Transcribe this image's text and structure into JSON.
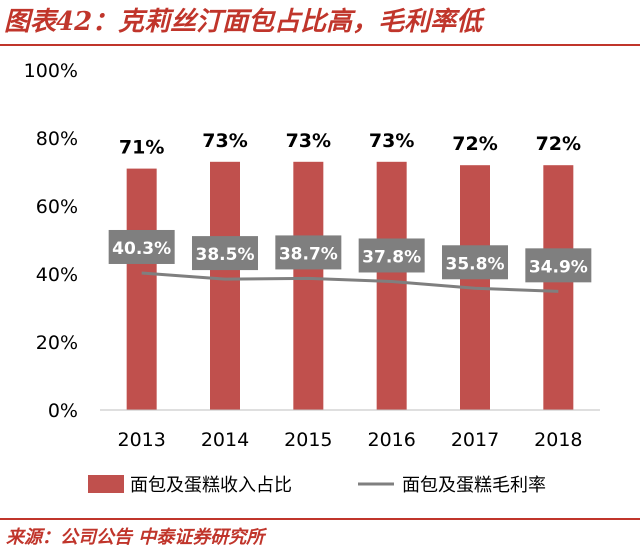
{
  "header": {
    "title": "图表42：克莉丝汀面包占比高，毛利率低"
  },
  "footer": {
    "source": "来源：公司公告 中泰证券研究所"
  },
  "chart_data": {
    "type": "bar",
    "categories": [
      "2013",
      "2014",
      "2015",
      "2016",
      "2017",
      "2018"
    ],
    "series": [
      {
        "name": "面包及蛋糕收入占比",
        "type": "bar",
        "values": [
          71,
          73,
          73,
          73,
          72,
          72
        ],
        "labels": [
          "71%",
          "73%",
          "73%",
          "73%",
          "72%",
          "72%"
        ],
        "color": "#c0504d"
      },
      {
        "name": "面包及蛋糕毛利率",
        "type": "line",
        "values": [
          40.3,
          38.5,
          38.7,
          37.8,
          35.8,
          34.9
        ],
        "labels": [
          "40.3%",
          "38.5%",
          "38.7%",
          "37.8%",
          "35.8%",
          "34.9%"
        ],
        "color": "#7f7f7f"
      }
    ],
    "yticks": [
      "0%",
      "20%",
      "40%",
      "60%",
      "80%",
      "100%"
    ],
    "ylim": [
      0,
      100
    ],
    "grid": false,
    "legend": "bottom"
  }
}
